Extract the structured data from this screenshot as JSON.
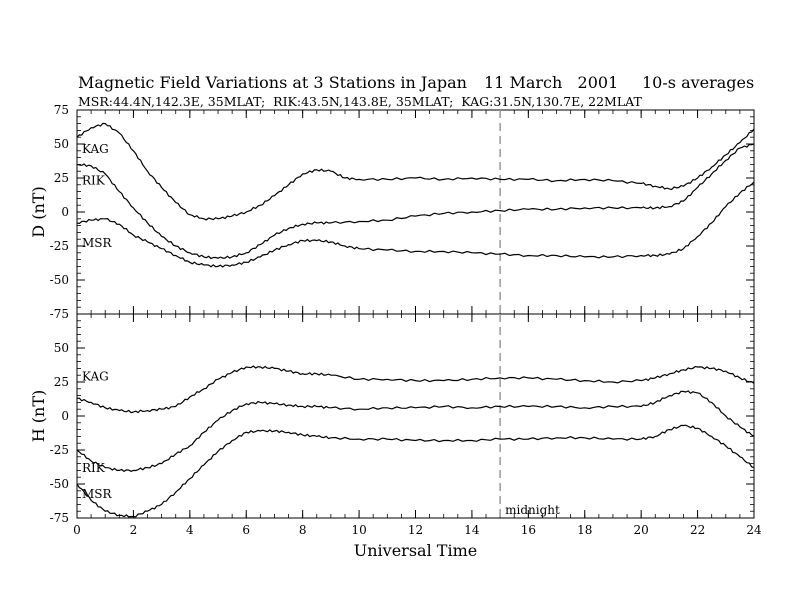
{
  "header": {
    "title": "Magnetic Field Variations at 3 Stations in Japan",
    "date": "11 March   2001",
    "averaging": "10-s averages",
    "stations_line": "MSR:44.4N,142.3E, 35MLAT;  RIK:43.5N,143.8E, 35MLAT;  KAG:31.5N,130.7E, 22MLAT"
  },
  "chart_data": [
    {
      "type": "line",
      "panel": "top",
      "ylabel": "D (nT)",
      "xlabel": "",
      "xlim": [
        0,
        24
      ],
      "ylim": [
        -75,
        75
      ],
      "yticks": [
        -75,
        -50,
        -25,
        0,
        25,
        50,
        75
      ],
      "x_tick_labels": [],
      "vline": {
        "x": 15,
        "style": "dashed"
      },
      "series": [
        {
          "name": "KAG",
          "color": "#000000",
          "x": [
            0,
            0.5,
            1,
            1.5,
            2,
            2.5,
            3,
            3.5,
            4,
            4.5,
            5,
            5.5,
            6,
            6.5,
            7,
            7.5,
            8,
            8.5,
            9,
            9.5,
            10,
            11,
            12,
            13,
            14,
            15,
            16,
            17,
            18,
            19,
            20,
            20.5,
            21,
            21.5,
            22,
            22.5,
            23,
            23.5,
            24
          ],
          "values": [
            55,
            62,
            65,
            58,
            45,
            30,
            18,
            7,
            -2,
            -5,
            -5,
            -3,
            0,
            5,
            12,
            20,
            28,
            31,
            30,
            25,
            24,
            24,
            25,
            24,
            25,
            24,
            24,
            23,
            24,
            23,
            21,
            19,
            17,
            19,
            25,
            33,
            42,
            51,
            61
          ]
        },
        {
          "name": "RIK",
          "color": "#000000",
          "x": [
            0,
            0.5,
            1,
            1.5,
            2,
            2.5,
            3,
            3.5,
            4,
            4.5,
            5,
            5.5,
            6,
            6.5,
            7,
            7.5,
            8,
            8.5,
            9,
            10,
            11,
            12,
            13,
            14,
            15,
            16,
            17,
            18,
            19,
            20,
            20.5,
            21,
            21.5,
            22,
            22.5,
            23,
            23.5,
            24
          ],
          "values": [
            35,
            34,
            28,
            15,
            3,
            -8,
            -18,
            -25,
            -30,
            -33,
            -34,
            -33,
            -30,
            -24,
            -17,
            -12,
            -9,
            -8,
            -8,
            -7,
            -6,
            -3,
            -1,
            0,
            1,
            2,
            2,
            3,
            3,
            3,
            3,
            4,
            8,
            18,
            28,
            38,
            47,
            50
          ]
        },
        {
          "name": "MSR",
          "color": "#000000",
          "x": [
            0,
            0.5,
            1,
            1.5,
            2,
            2.5,
            3,
            3.5,
            4,
            4.5,
            5,
            5.5,
            6,
            6.5,
            7,
            7.5,
            8,
            8.5,
            9,
            9.5,
            10,
            11,
            12,
            13,
            14,
            15,
            16,
            17,
            18,
            19,
            20,
            20.5,
            21,
            21.5,
            22,
            22.5,
            23,
            23.5,
            24
          ],
          "values": [
            -8,
            -6,
            -5,
            -9,
            -17,
            -22,
            -27,
            -32,
            -37,
            -39,
            -40,
            -39,
            -37,
            -33,
            -28,
            -24,
            -21,
            -21,
            -22,
            -25,
            -27,
            -28,
            -29,
            -29,
            -30,
            -31,
            -32,
            -32,
            -33,
            -33,
            -32,
            -32,
            -31,
            -27,
            -18,
            -8,
            4,
            14,
            22
          ]
        }
      ]
    },
    {
      "type": "line",
      "panel": "bottom",
      "ylabel": "H (nT)",
      "xlabel": "Universal Time",
      "xlim": [
        0,
        24
      ],
      "ylim": [
        -75,
        75
      ],
      "xticks": [
        0,
        2,
        4,
        6,
        8,
        10,
        12,
        14,
        16,
        18,
        20,
        22,
        24
      ],
      "yticks": [
        -75,
        -50,
        -25,
        0,
        25,
        50
      ],
      "vline": {
        "x": 15,
        "style": "dashed",
        "label": "midnight"
      },
      "series": [
        {
          "name": "KAG",
          "color": "#000000",
          "x": [
            0,
            0.5,
            1,
            1.5,
            2,
            2.5,
            3,
            3.5,
            4,
            4.5,
            5,
            5.5,
            6,
            6.5,
            7,
            7.5,
            8,
            8.5,
            9,
            10,
            11,
            12,
            13,
            14,
            15,
            16,
            17,
            18,
            19,
            20,
            20.5,
            21,
            21.5,
            22,
            22.5,
            23,
            23.5,
            24
          ],
          "values": [
            13,
            10,
            6,
            4,
            3,
            4,
            5,
            7,
            14,
            20,
            27,
            32,
            36,
            36,
            35,
            33,
            31,
            31,
            30,
            27,
            27,
            26,
            26,
            27,
            28,
            28,
            27,
            26,
            25,
            26,
            28,
            31,
            34,
            36,
            35,
            33,
            28,
            24
          ]
        },
        {
          "name": "RIK",
          "color": "#000000",
          "x": [
            0,
            0.5,
            1,
            1.5,
            2,
            2.5,
            3,
            3.5,
            4,
            4.5,
            5,
            5.5,
            6,
            6.5,
            7,
            7.5,
            8,
            8.5,
            9,
            10,
            11,
            12,
            13,
            14,
            15,
            16,
            17,
            18,
            19,
            20,
            20.5,
            21,
            21.5,
            22,
            22.5,
            23,
            23.5,
            24
          ],
          "values": [
            -25,
            -33,
            -38,
            -40,
            -40,
            -38,
            -35,
            -28,
            -22,
            -12,
            -3,
            4,
            9,
            10,
            9,
            8,
            7,
            7,
            6,
            5,
            6,
            6,
            7,
            6,
            7,
            7,
            7,
            6,
            7,
            7,
            10,
            15,
            18,
            17,
            10,
            0,
            -8,
            -15
          ]
        },
        {
          "name": "MSR",
          "color": "#000000",
          "x": [
            0,
            0.5,
            1,
            1.5,
            2,
            2.5,
            3,
            3.5,
            4,
            4.5,
            5,
            5.5,
            6,
            6.5,
            7,
            7.5,
            8,
            8.5,
            9,
            10,
            11,
            12,
            13,
            14,
            15,
            16,
            17,
            18,
            19,
            20,
            20.5,
            21,
            21.5,
            22,
            22.5,
            23,
            23.5,
            24
          ],
          "values": [
            -50,
            -62,
            -70,
            -73,
            -74,
            -70,
            -65,
            -56,
            -46,
            -36,
            -26,
            -18,
            -12,
            -11,
            -11,
            -12,
            -14,
            -15,
            -16,
            -17,
            -17,
            -18,
            -18,
            -18,
            -17,
            -17,
            -16,
            -16,
            -17,
            -17,
            -15,
            -10,
            -7,
            -9,
            -15,
            -22,
            -30,
            -38
          ]
        }
      ]
    }
  ]
}
